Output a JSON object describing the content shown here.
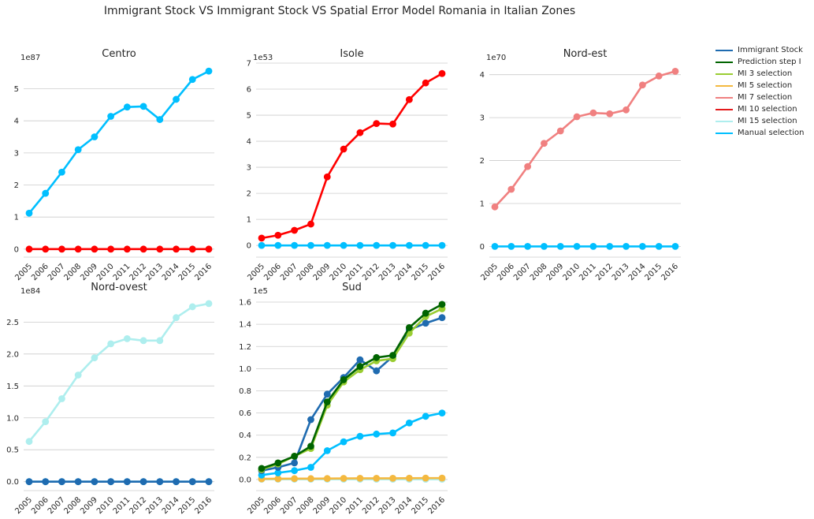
{
  "title": "Immigrant Stock VS Immigrant Stock VS Spatial Error Model Romania in Italian Zones",
  "legend": [
    {
      "label": "Immigrant Stock",
      "color": "#1f6bb0"
    },
    {
      "label": "Prediction step I",
      "color": "#006400"
    },
    {
      "label": "MI 3 selection",
      "color": "#9acd32"
    },
    {
      "label": "MI 5 selection",
      "color": "#f4b940"
    },
    {
      "label": "MI 7 selection",
      "color": "#f08080"
    },
    {
      "label": "MI 10 selection",
      "color": "#e31a1c"
    },
    {
      "label": "MI 15 selection",
      "color": "#aeeeee"
    },
    {
      "label": "Manual selection",
      "color": "#00bfff"
    }
  ],
  "chart_data": [
    {
      "type": "line",
      "title": "Centro",
      "exponent_label": "1e87",
      "x": [
        "2005",
        "2006",
        "2007",
        "2008",
        "2009",
        "2010",
        "2011",
        "2012",
        "2013",
        "2014",
        "2015",
        "2016"
      ],
      "ylim": [
        -0.25,
        5.8
      ],
      "yticks": [
        "0",
        "1",
        "2",
        "3",
        "4",
        "5"
      ],
      "grid": true,
      "series": [
        {
          "name": "Manual selection",
          "color": "#00bfff",
          "values": [
            1.12,
            1.74,
            2.4,
            3.1,
            3.5,
            4.14,
            4.43,
            4.45,
            4.04,
            4.67,
            5.29,
            5.55
          ]
        },
        {
          "name": "MI 10 selection",
          "color": "#ff0000",
          "values": [
            0,
            0,
            0,
            0,
            0,
            0,
            0,
            0,
            0,
            0,
            0,
            0
          ]
        }
      ]
    },
    {
      "type": "line",
      "title": "Isole",
      "exponent_label": "1e53",
      "x": [
        "2005",
        "2006",
        "2007",
        "2008",
        "2009",
        "2010",
        "2011",
        "2012",
        "2013",
        "2014",
        "2015",
        "2016"
      ],
      "ylim": [
        -0.45,
        7.0
      ],
      "yticks": [
        "0",
        "1",
        "2",
        "3",
        "4",
        "5",
        "6",
        "7"
      ],
      "grid": true,
      "series": [
        {
          "name": "MI 10 selection",
          "color": "#ff0000",
          "values": [
            0.28,
            0.39,
            0.58,
            0.82,
            2.63,
            3.7,
            4.33,
            4.68,
            4.66,
            5.6,
            6.24,
            6.6
          ]
        },
        {
          "name": "Manual selection",
          "color": "#00bfff",
          "values": [
            0,
            0,
            0,
            0,
            0,
            0,
            0,
            0,
            0,
            0,
            0,
            0
          ]
        }
      ]
    },
    {
      "type": "line",
      "title": "Nord-est",
      "exponent_label": "1e70",
      "x": [
        "2005",
        "2006",
        "2007",
        "2008",
        "2009",
        "2010",
        "2011",
        "2012",
        "2013",
        "2014",
        "2015",
        "2016"
      ],
      "ylim": [
        -0.25,
        4.27
      ],
      "yticks": [
        "0",
        "1",
        "2",
        "3",
        "4"
      ],
      "grid": true,
      "series": [
        {
          "name": "MI 7 selection",
          "color": "#f08080",
          "values": [
            0.92,
            1.33,
            1.86,
            2.4,
            2.69,
            3.02,
            3.11,
            3.09,
            3.18,
            3.76,
            3.97,
            4.08
          ]
        },
        {
          "name": "Manual selection",
          "color": "#00bfff",
          "values": [
            0,
            0,
            0,
            0,
            0,
            0,
            0,
            0,
            0,
            0,
            0,
            0
          ]
        }
      ]
    },
    {
      "type": "line",
      "title": "Nord-ovest",
      "exponent_label": "1e84",
      "x": [
        "2005",
        "2006",
        "2007",
        "2008",
        "2009",
        "2010",
        "2011",
        "2012",
        "2013",
        "2014",
        "2015",
        "2016"
      ],
      "ylim": [
        -0.14,
        2.9
      ],
      "yticks": [
        "0.0",
        "0.5",
        "1.0",
        "1.5",
        "2.0",
        "2.5"
      ],
      "grid": true,
      "series": [
        {
          "name": "MI 15 selection",
          "color": "#aeeeee",
          "values": [
            0.63,
            0.94,
            1.3,
            1.67,
            1.94,
            2.16,
            2.24,
            2.21,
            2.21,
            2.57,
            2.74,
            2.79
          ]
        },
        {
          "name": "Manual selection",
          "color": "#00bfff",
          "values": [
            0,
            0,
            0,
            0,
            0,
            0,
            0,
            0,
            0,
            0,
            0,
            0
          ]
        },
        {
          "name": "Immigrant Stock",
          "color": "#1f6bb0",
          "values": [
            0,
            0,
            0,
            0,
            0,
            0,
            0,
            0,
            0,
            0,
            0,
            0
          ]
        }
      ]
    },
    {
      "type": "line",
      "title": "Sud",
      "exponent_label": "1e5",
      "x": [
        "2005",
        "2006",
        "2007",
        "2008",
        "2009",
        "2010",
        "2011",
        "2012",
        "2013",
        "2014",
        "2015",
        "2016"
      ],
      "ylim": [
        -0.1,
        1.65
      ],
      "yticks": [
        "0.0",
        "0.2",
        "0.4",
        "0.6",
        "0.8",
        "1.0",
        "1.2",
        "1.4",
        "1.6"
      ],
      "grid": true,
      "series": [
        {
          "name": "MI 15 selection",
          "color": "#aeeeee",
          "values": [
            0.002,
            0.002,
            0.002,
            0.002,
            0.002,
            0.002,
            0.002,
            0.002,
            0.002,
            0.002,
            0.002,
            0.002
          ]
        },
        {
          "name": "MI 5 selection",
          "color": "#f4b940",
          "values": [
            0.006,
            0.007,
            0.008,
            0.008,
            0.009,
            0.01,
            0.011,
            0.011,
            0.011,
            0.012,
            0.013,
            0.013
          ]
        },
        {
          "name": "Manual selection",
          "color": "#00bfff",
          "values": [
            0.04,
            0.06,
            0.08,
            0.11,
            0.26,
            0.34,
            0.39,
            0.41,
            0.42,
            0.51,
            0.57,
            0.6
          ]
        },
        {
          "name": "Immigrant Stock",
          "color": "#1f6bb0",
          "values": [
            0.08,
            0.11,
            0.15,
            0.54,
            0.77,
            0.92,
            1.08,
            0.98,
            1.11,
            1.35,
            1.41,
            1.46
          ]
        },
        {
          "name": "MI 3 selection",
          "color": "#9acd32",
          "values": [
            0.09,
            0.14,
            0.21,
            0.28,
            0.67,
            0.88,
            0.99,
            1.07,
            1.09,
            1.32,
            1.47,
            1.54
          ]
        },
        {
          "name": "Prediction step I",
          "color": "#006400",
          "values": [
            0.1,
            0.15,
            0.21,
            0.3,
            0.7,
            0.9,
            1.02,
            1.1,
            1.12,
            1.37,
            1.5,
            1.58
          ]
        }
      ]
    }
  ]
}
